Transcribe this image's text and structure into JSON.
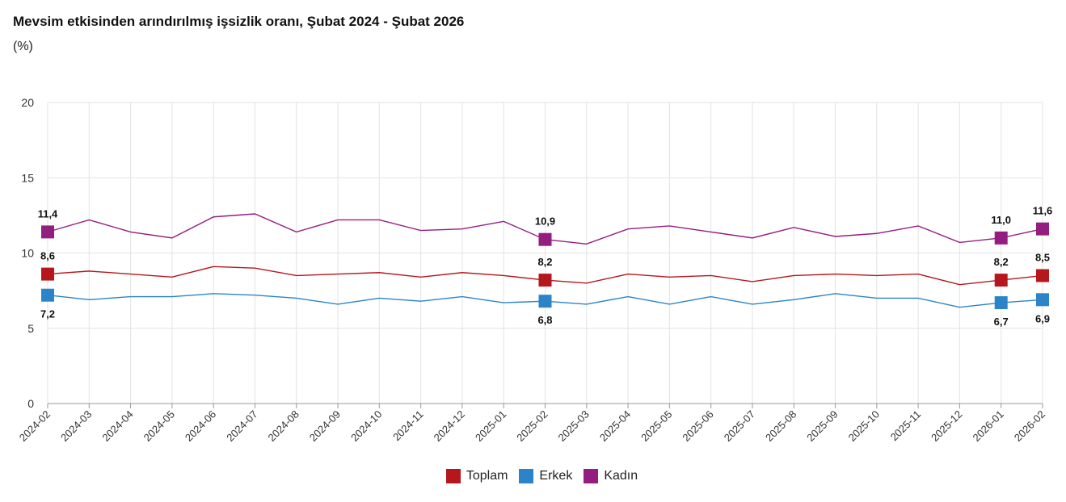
{
  "chart_data": {
    "type": "line",
    "title": "Mevsim etkisinden arındırılmış işsizlik oranı, Şubat 2024 - Şubat 2026",
    "subtitle": "(%)",
    "xlabel": "",
    "ylabel": "",
    "ylim": [
      0,
      20
    ],
    "yticks": [
      "0",
      "5",
      "10",
      "15",
      "20"
    ],
    "grid": true,
    "legend_position": "bottom",
    "categories": [
      "2024-02",
      "2024-03",
      "2024-04",
      "2024-05",
      "2024-06",
      "2024-07",
      "2024-08",
      "2024-09",
      "2024-10",
      "2024-11",
      "2024-12",
      "2025-01",
      "2025-02",
      "2025-03",
      "2025-04",
      "2025-05",
      "2025-06",
      "2025-07",
      "2025-08",
      "2025-09",
      "2025-10",
      "2025-11",
      "2025-12",
      "2026-01",
      "2026-02"
    ],
    "series": [
      {
        "name": "Toplam",
        "color": "#b5171d",
        "values": [
          8.6,
          8.8,
          8.6,
          8.4,
          9.1,
          9.0,
          8.5,
          8.6,
          8.7,
          8.4,
          8.7,
          8.5,
          8.2,
          8.0,
          8.6,
          8.4,
          8.5,
          8.1,
          8.5,
          8.6,
          8.5,
          8.6,
          7.9,
          8.2,
          8.5
        ],
        "labels": {
          "0": "8,6",
          "12": "8,2",
          "23": "8,2",
          "24": "8,5"
        },
        "label_side": "above"
      },
      {
        "name": "Erkek",
        "color": "#2a84c7",
        "values": [
          7.2,
          6.9,
          7.1,
          7.1,
          7.3,
          7.2,
          7.0,
          6.6,
          7.0,
          6.8,
          7.1,
          6.7,
          6.8,
          6.6,
          7.1,
          6.6,
          7.1,
          6.6,
          6.9,
          7.3,
          7.0,
          7.0,
          6.4,
          6.7,
          6.9
        ],
        "labels": {
          "0": "7,2",
          "12": "6,8",
          "23": "6,7",
          "24": "6,9"
        },
        "label_side": "below"
      },
      {
        "name": "Kadın",
        "color": "#941d80",
        "values": [
          11.4,
          12.2,
          11.4,
          11.0,
          12.4,
          12.6,
          11.4,
          12.2,
          12.2,
          11.5,
          11.6,
          12.1,
          10.9,
          10.6,
          11.6,
          11.8,
          11.4,
          11.0,
          11.7,
          11.1,
          11.3,
          11.8,
          10.7,
          11.0,
          11.6
        ],
        "labels": {
          "0": "11,4",
          "12": "10,9",
          "23": "11,0",
          "24": "11,6"
        },
        "label_side": "above"
      }
    ]
  }
}
